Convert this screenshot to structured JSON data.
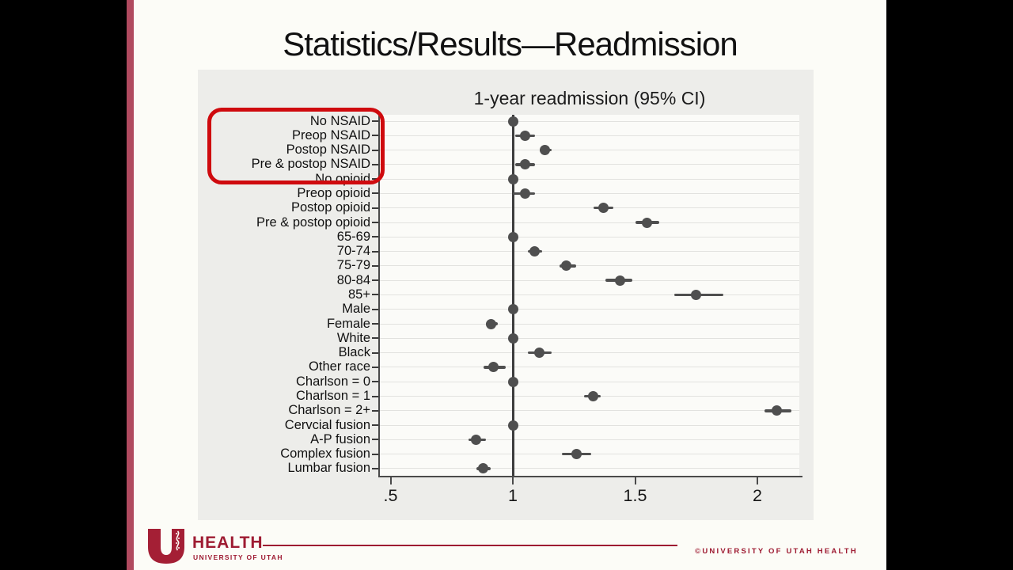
{
  "slide": {
    "title": "Statistics/Results—Readmission"
  },
  "chart_data": {
    "type": "forest",
    "title": "1-year readmission (95% CI)",
    "xlabel": "",
    "ylabel": "",
    "xlim": [
      0.46,
      2.18
    ],
    "grid": true,
    "legend": null,
    "reference_line": 1.0,
    "x_ticks": [
      {
        "label": ".5",
        "value": 0.5
      },
      {
        "label": "1",
        "value": 1.0
      },
      {
        "label": "1.5",
        "value": 1.5
      },
      {
        "label": "2",
        "value": 2.0
      }
    ],
    "rows": [
      {
        "label": "No NSAID",
        "value": 1.0,
        "ci": null
      },
      {
        "label": "Preop NSAID",
        "value": 1.05,
        "ci": [
          1.01,
          1.09
        ]
      },
      {
        "label": "Postop NSAID",
        "value": 1.13,
        "ci": [
          1.11,
          1.16
        ]
      },
      {
        "label": "Pre & postop NSAID",
        "value": 1.05,
        "ci": [
          1.01,
          1.09
        ]
      },
      {
        "label": "No opioid",
        "value": 1.0,
        "ci": null
      },
      {
        "label": "Preop opioid",
        "value": 1.05,
        "ci": [
          1.0,
          1.09
        ]
      },
      {
        "label": "Postop opioid",
        "value": 1.37,
        "ci": [
          1.33,
          1.41
        ]
      },
      {
        "label": "Pre & postop opioid",
        "value": 1.55,
        "ci": [
          1.5,
          1.6
        ]
      },
      {
        "label": "65-69",
        "value": 1.0,
        "ci": null
      },
      {
        "label": "70-74",
        "value": 1.09,
        "ci": [
          1.06,
          1.12
        ]
      },
      {
        "label": "75-79",
        "value": 1.22,
        "ci": [
          1.19,
          1.26
        ]
      },
      {
        "label": "80-84",
        "value": 1.44,
        "ci": [
          1.38,
          1.49
        ]
      },
      {
        "label": "85+",
        "value": 1.75,
        "ci": [
          1.66,
          1.86
        ]
      },
      {
        "label": "Male",
        "value": 1.0,
        "ci": null
      },
      {
        "label": "Female",
        "value": 0.91,
        "ci": [
          0.89,
          0.94
        ]
      },
      {
        "label": "White",
        "value": 1.0,
        "ci": null
      },
      {
        "label": "Black",
        "value": 1.11,
        "ci": [
          1.06,
          1.16
        ]
      },
      {
        "label": "Other race",
        "value": 0.92,
        "ci": [
          0.88,
          0.97
        ]
      },
      {
        "label": "Charlson = 0",
        "value": 1.0,
        "ci": null
      },
      {
        "label": "Charlson = 1",
        "value": 1.33,
        "ci": [
          1.29,
          1.36
        ]
      },
      {
        "label": "Charlson = 2+",
        "value": 2.08,
        "ci": [
          2.03,
          2.14
        ]
      },
      {
        "label": "Cervcial fusion",
        "value": 1.0,
        "ci": null
      },
      {
        "label": "A-P fusion",
        "value": 0.85,
        "ci": [
          0.82,
          0.89
        ]
      },
      {
        "label": "Complex fusion",
        "value": 1.26,
        "ci": [
          1.2,
          1.32
        ]
      },
      {
        "label": "Lumbar fusion",
        "value": 0.88,
        "ci": [
          0.85,
          0.91
        ]
      }
    ],
    "highlight": {
      "rows": [
        0,
        1,
        2,
        3
      ],
      "color": "#cf0a0e"
    },
    "colors": {
      "marker": "#4f4f4f",
      "reference_line": "#3d3d3d",
      "axis": "#4a4a4a",
      "grid": "#e2e2df",
      "plot_bg": "#fbfbf8",
      "chart_bg": "#ededea"
    }
  },
  "footer": {
    "brand": "HEALTH",
    "brand_sub": "UNIVERSITY OF UTAH",
    "copyright": "©UNIVERSITY OF UTAH HEALTH",
    "brand_color": "#9e1b32"
  },
  "frame": {
    "stripe_color": "#b04a5f"
  }
}
